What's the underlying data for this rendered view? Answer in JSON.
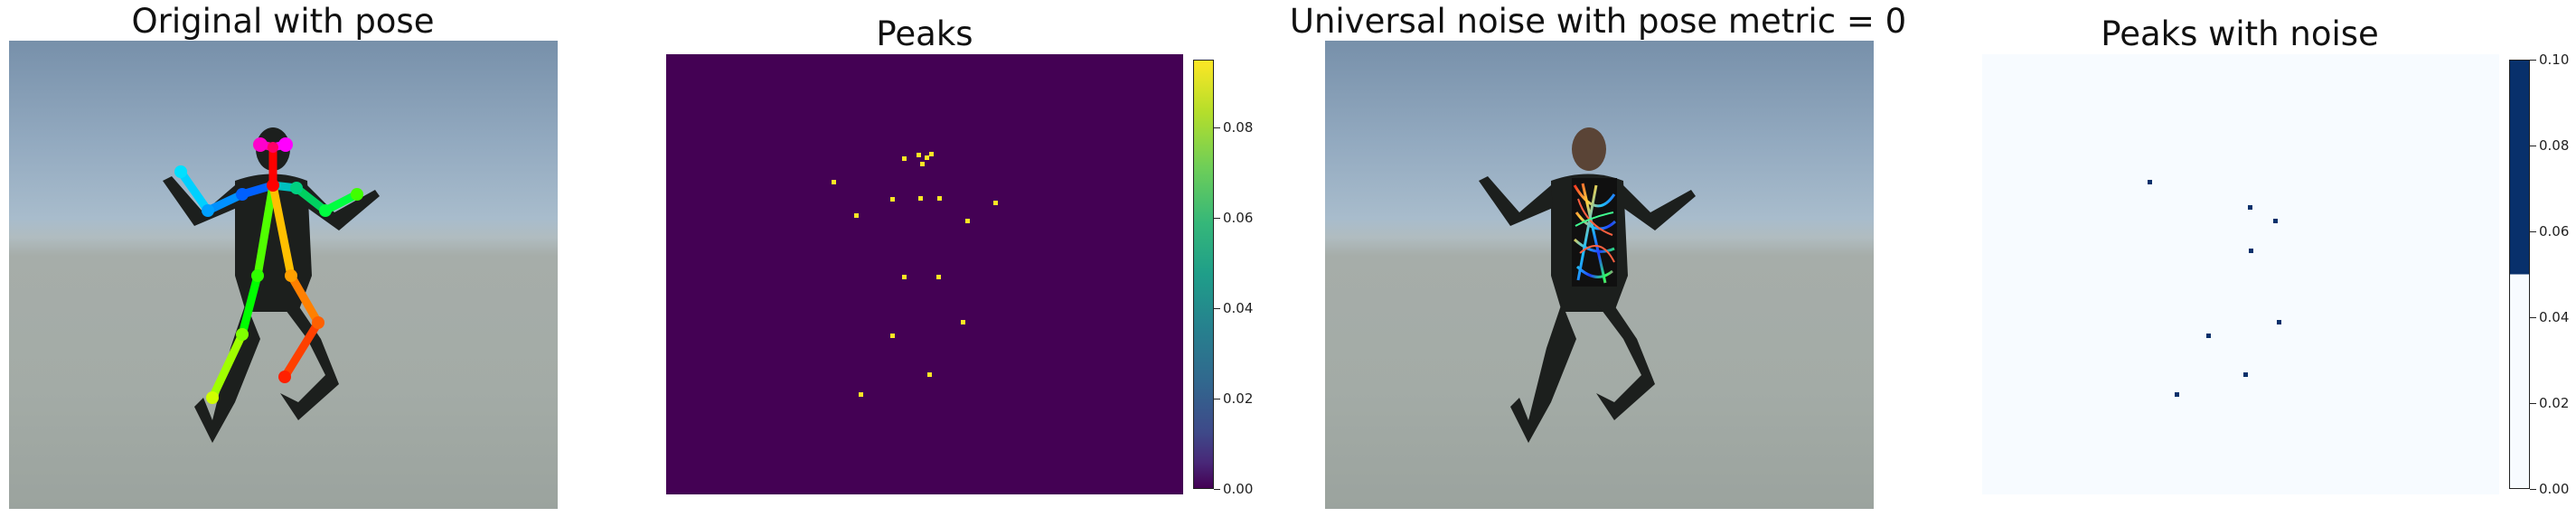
{
  "panels": [
    {
      "title": "Original with pose"
    },
    {
      "title": "Peaks"
    },
    {
      "title": "Universal noise with pose metric = 0"
    },
    {
      "title": "Peaks with noise"
    }
  ],
  "colorbar1": {
    "ticks": [
      "0.08",
      "0.06",
      "0.04",
      "0.02",
      "0.00"
    ],
    "tick_values": [
      0.08,
      0.06,
      0.04,
      0.02,
      0.0
    ],
    "range": [
      0,
      0.095
    ],
    "colors": [
      "#fde725",
      "#5ec962",
      "#21918c",
      "#3b528b",
      "#440154"
    ]
  },
  "colorbar2": {
    "ticks": [
      "0.10",
      "0.08",
      "0.06",
      "0.04",
      "0.02",
      "0.00"
    ],
    "tick_values": [
      0.1,
      0.08,
      0.06,
      0.04,
      0.02,
      0.0
    ],
    "range": [
      0,
      0.1
    ],
    "colors": [
      "#08306b",
      "#f7fbff"
    ]
  },
  "peaks1_points": [
    [
      0.456,
      0.233
    ],
    [
      0.484,
      0.223
    ],
    [
      0.5,
      0.23
    ],
    [
      0.492,
      0.245
    ],
    [
      0.508,
      0.222
    ],
    [
      0.32,
      0.285
    ],
    [
      0.433,
      0.325
    ],
    [
      0.488,
      0.322
    ],
    [
      0.524,
      0.322
    ],
    [
      0.632,
      0.333
    ],
    [
      0.363,
      0.362
    ],
    [
      0.578,
      0.373
    ],
    [
      0.457,
      0.502
    ],
    [
      0.523,
      0.502
    ],
    [
      0.57,
      0.603
    ],
    [
      0.433,
      0.635
    ],
    [
      0.373,
      0.768
    ],
    [
      0.505,
      0.723
    ]
  ],
  "peaks2_points": [
    [
      0.32,
      0.285
    ],
    [
      0.514,
      0.342
    ],
    [
      0.563,
      0.373
    ],
    [
      0.515,
      0.441
    ],
    [
      0.57,
      0.603
    ],
    [
      0.433,
      0.635
    ],
    [
      0.373,
      0.768
    ],
    [
      0.505,
      0.723
    ]
  ]
}
